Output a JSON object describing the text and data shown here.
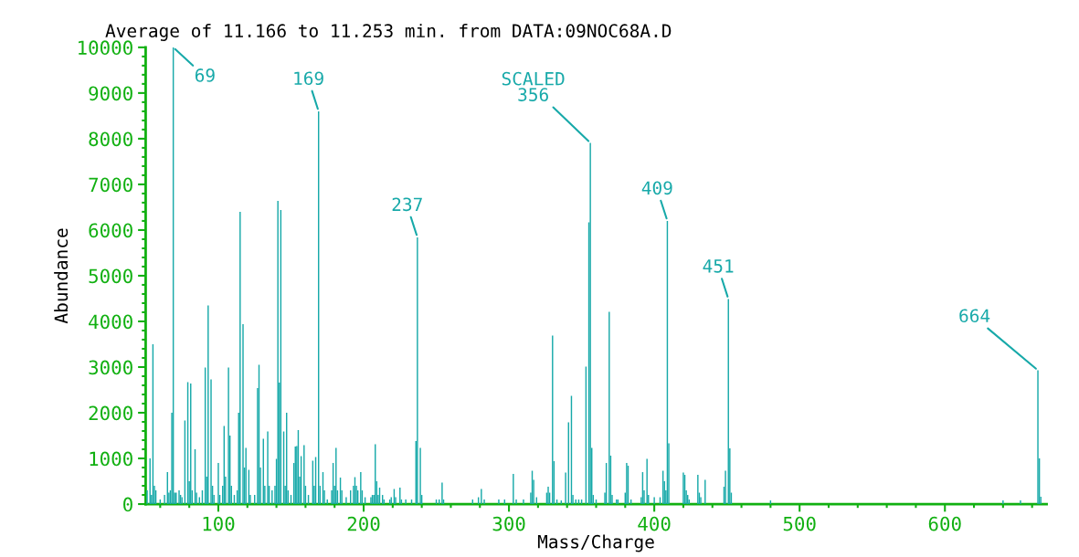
{
  "chart_data": {
    "type": "bar",
    "title": "Average of 11.166 to 11.253 min. from DATA:09NOC68A.D",
    "xlabel": "Mass/Charge",
    "ylabel": "Abundance",
    "x": [
      51,
      53,
      54,
      55,
      56,
      57,
      60,
      63,
      65,
      66,
      67,
      68,
      69,
      70,
      71,
      73,
      74,
      75,
      77,
      79,
      80,
      81,
      82,
      84,
      85,
      87,
      89,
      91,
      92,
      93,
      95,
      96,
      97,
      100,
      101,
      103,
      104,
      105,
      107,
      108,
      109,
      111,
      113,
      114,
      115,
      117,
      118,
      119,
      121,
      122,
      125,
      127,
      128,
      129,
      131,
      132,
      134,
      135,
      137,
      139,
      140,
      141,
      142,
      143,
      145,
      146,
      147,
      148,
      150,
      152,
      153,
      154,
      155,
      156,
      157,
      159,
      160,
      162,
      165,
      166,
      167,
      169,
      170,
      172,
      173,
      175,
      178,
      179,
      180,
      181,
      182,
      184,
      185,
      188,
      191,
      193,
      194,
      195,
      196,
      198,
      199,
      201,
      205,
      206,
      207,
      208,
      209,
      210,
      211,
      213,
      214,
      218,
      219,
      221,
      222,
      225,
      226,
      229,
      233,
      236,
      237,
      239,
      240,
      250,
      252,
      254,
      255,
      275,
      279,
      281,
      283,
      293,
      297,
      303,
      305,
      310,
      315,
      316,
      317,
      319,
      326,
      327,
      328,
      330,
      331,
      333,
      336,
      339,
      341,
      343,
      344,
      346,
      348,
      350,
      353,
      355,
      356,
      357,
      358,
      360,
      366,
      367,
      369,
      370,
      371,
      374,
      375,
      380,
      381,
      382,
      384,
      391,
      392,
      393,
      395,
      396,
      400,
      404,
      406,
      407,
      408,
      409,
      410,
      420,
      421,
      422,
      423,
      424,
      430,
      431,
      432,
      435,
      448,
      449,
      451,
      452,
      453,
      480,
      640,
      652,
      664,
      665,
      666
    ],
    "values": [
      300,
      1000,
      200,
      3500,
      400,
      300,
      100,
      200,
      700,
      250,
      300,
      2000,
      10000,
      250,
      250,
      300,
      200,
      150,
      1830,
      2670,
      500,
      2640,
      300,
      1200,
      250,
      150,
      300,
      2990,
      600,
      4350,
      2730,
      400,
      200,
      900,
      200,
      400,
      1710,
      600,
      2990,
      1500,
      400,
      200,
      300,
      2000,
      6400,
      3940,
      800,
      1230,
      750,
      200,
      200,
      2540,
      3050,
      800,
      1430,
      400,
      1590,
      400,
      300,
      400,
      990,
      6640,
      2660,
      6440,
      1590,
      400,
      2000,
      300,
      200,
      900,
      1260,
      1270,
      1620,
      600,
      1050,
      1290,
      400,
      200,
      950,
      400,
      1030,
      8600,
      400,
      700,
      300,
      100,
      300,
      900,
      400,
      1230,
      300,
      580,
      300,
      150,
      300,
      400,
      590,
      400,
      300,
      700,
      300,
      150,
      150,
      200,
      200,
      1310,
      500,
      200,
      360,
      200,
      100,
      100,
      150,
      330,
      150,
      360,
      100,
      100,
      100,
      1380,
      5840,
      1230,
      200,
      100,
      100,
      470,
      100,
      100,
      150,
      330,
      100,
      100,
      100,
      660,
      100,
      100,
      250,
      730,
      530,
      150,
      250,
      380,
      250,
      3690,
      940,
      100,
      80,
      690,
      1790,
      2370,
      200,
      100,
      100,
      100,
      3010,
      6170,
      7910,
      1230,
      200,
      100,
      250,
      900,
      4210,
      1060,
      200,
      100,
      100,
      250,
      900,
      840,
      100,
      150,
      700,
      300,
      990,
      200,
      150,
      150,
      730,
      500,
      300,
      6200,
      1330,
      690,
      640,
      300,
      200,
      100,
      640,
      250,
      150,
      530,
      380,
      730,
      4490,
      1220,
      250,
      80,
      80,
      80,
      2930,
      1000,
      160
    ],
    "color": "#17a9a9",
    "xlim": [
      50,
      670
    ],
    "xticks": [
      100,
      200,
      300,
      400,
      500,
      600
    ],
    "ylim": [
      0,
      10000
    ],
    "yticks": [
      0,
      1000,
      2000,
      3000,
      4000,
      5000,
      6000,
      7000,
      8000,
      9000,
      10000
    ],
    "annotations": [
      {
        "text": "69",
        "x": 69,
        "y": 10000
      },
      {
        "text": "169",
        "x": 169,
        "y": 8600
      },
      {
        "text": "237",
        "x": 237,
        "y": 5840
      },
      {
        "text": "SCALED\n356",
        "x": 356,
        "y": 7910
      },
      {
        "text": "409",
        "x": 409,
        "y": 6200
      },
      {
        "text": "451",
        "x": 451,
        "y": 4490
      },
      {
        "text": "664",
        "x": 664,
        "y": 2930
      }
    ]
  }
}
